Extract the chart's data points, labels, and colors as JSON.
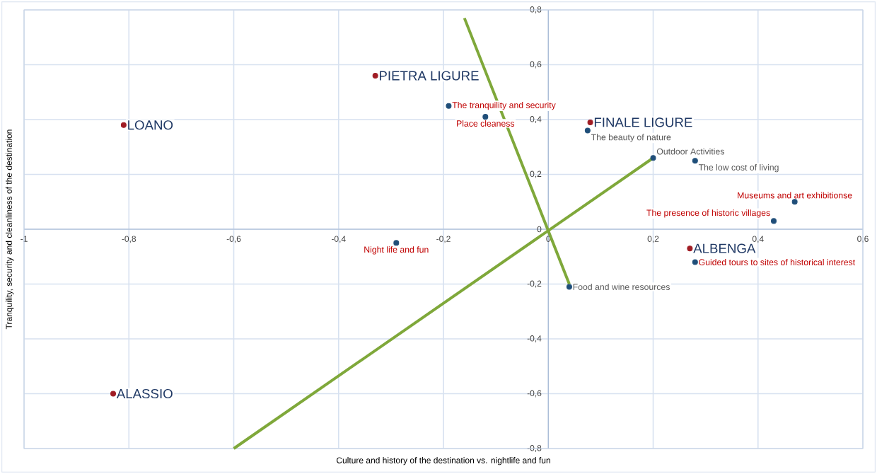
{
  "chart_data": {
    "type": "scatter",
    "xlabel": "Culture and history of the destination vs. nightlife and fun",
    "ylabel": "Tranquility, security and cleanliness of the destination",
    "xlim": [
      -1,
      0.6
    ],
    "ylim": [
      -0.8,
      0.8
    ],
    "xticks": [
      {
        "value": -1,
        "label": "-1"
      },
      {
        "value": -0.8,
        "label": "-0,8"
      },
      {
        "value": -0.6,
        "label": "-0,6"
      },
      {
        "value": -0.4,
        "label": "-0,4"
      },
      {
        "value": -0.2,
        "label": "-0,2"
      },
      {
        "value": 0,
        "label": "0"
      },
      {
        "value": 0.2,
        "label": "0,2"
      },
      {
        "value": 0.4,
        "label": "0,4"
      },
      {
        "value": 0.6,
        "label": "0,6"
      }
    ],
    "yticks": [
      {
        "value": -0.8,
        "label": "-0,8"
      },
      {
        "value": -0.6,
        "label": "-0,6"
      },
      {
        "value": -0.4,
        "label": "-0,4"
      },
      {
        "value": -0.2,
        "label": "-0,2"
      },
      {
        "value": 0,
        "label": "0"
      },
      {
        "value": 0.2,
        "label": "0,2"
      },
      {
        "value": 0.4,
        "label": "0,4"
      },
      {
        "value": 0.6,
        "label": "0,6"
      },
      {
        "value": 0.8,
        "label": "0,8"
      }
    ],
    "grid": true,
    "series": [
      {
        "marker": "circle",
        "color": "#a01c24",
        "x": [
          -0.81,
          -0.33,
          0.08,
          0.27,
          -0.83
        ],
        "values": [
          0.38,
          0.56,
          0.39,
          -0.07,
          -0.6
        ]
      },
      {
        "marker": "circle",
        "color": "#1f4e79",
        "x": [
          -0.19,
          -0.12,
          0.075,
          0.2,
          0.28,
          0.47,
          0.43,
          -0.29,
          0.28,
          0.04
        ],
        "values": [
          0.45,
          0.41,
          0.36,
          0.26,
          0.25,
          0.1,
          0.03,
          -0.05,
          -0.12,
          -0.21
        ]
      },
      {
        "type": "line",
        "marker": "none",
        "color": "#7fa83a",
        "x": [
          -0.16,
          0.04
        ],
        "values": [
          0.77,
          -0.2
        ]
      },
      {
        "type": "line",
        "marker": "none",
        "color": "#7fa83a",
        "x": [
          -0.6,
          0.2
        ],
        "values": [
          -0.8,
          0.26
        ]
      }
    ],
    "annotations": [
      {
        "text": "LOANO",
        "x": -0.81,
        "y": 0.38
      },
      {
        "text": "PIETRA LIGURE",
        "x": -0.33,
        "y": 0.56
      },
      {
        "text": "FINALE LIGURE",
        "x": 0.08,
        "y": 0.39
      },
      {
        "text": "ALBENGA",
        "x": 0.27,
        "y": -0.07
      },
      {
        "text": "ALASSIO",
        "x": -0.83,
        "y": -0.6
      },
      {
        "text": "The tranquility and security",
        "x": -0.19,
        "y": 0.45
      },
      {
        "text": "Place cleaness",
        "x": -0.12,
        "y": 0.41
      },
      {
        "text": "The beauty of nature",
        "x": 0.075,
        "y": 0.36
      },
      {
        "text": "Outdoor Activities",
        "x": 0.2,
        "y": 0.26
      },
      {
        "text": "The low cost of living",
        "x": 0.28,
        "y": 0.25
      },
      {
        "text": "Museums and art exhibitionse",
        "x": 0.47,
        "y": 0.1
      },
      {
        "text": "The presence of historic villages",
        "x": 0.43,
        "y": 0.03
      },
      {
        "text": "Night life and fun",
        "x": -0.29,
        "y": -0.05
      },
      {
        "text": "Guided tours to sites of historical interest",
        "x": 0.28,
        "y": -0.12
      },
      {
        "text": "Food and wine resources",
        "x": 0.04,
        "y": -0.21
      }
    ]
  }
}
